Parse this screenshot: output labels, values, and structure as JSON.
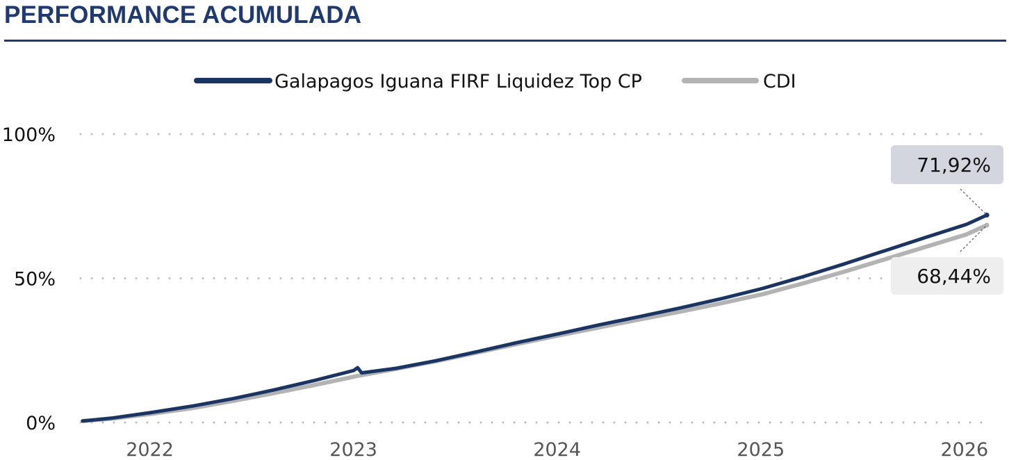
{
  "header": {
    "title": "PERFORMANCE ACUMULADA"
  },
  "colors": {
    "title": "#1f3a73",
    "fund": "#1b3563",
    "cdi": "#b3b3b3",
    "grid": "#bdbdbd",
    "callout_fund_bg": "#d3d6de",
    "callout_cdi_bg": "#eeeeee"
  },
  "chart_data": {
    "type": "line",
    "title": "",
    "xlabel": "",
    "ylabel": "",
    "legend_position": "top-center",
    "grid": "horizontal-dotted",
    "xlim": [
      2021.65,
      2026.12
    ],
    "ylim": [
      0,
      100
    ],
    "y_ticks": [
      {
        "value": 0,
        "label": "0%"
      },
      {
        "value": 50,
        "label": "50%"
      },
      {
        "value": 100,
        "label": "100%"
      }
    ],
    "x_ticks": [
      {
        "value": 2022,
        "label": "2022"
      },
      {
        "value": 2023,
        "label": "2023"
      },
      {
        "value": 2024,
        "label": "2024"
      },
      {
        "value": 2025,
        "label": "2025"
      },
      {
        "value": 2026,
        "label": "2026"
      }
    ],
    "series": [
      {
        "name": "Galapagos Iguana FIRF Liquidez Top CP",
        "color_key": "fund",
        "end_label": "71,92%",
        "points": [
          [
            2021.66,
            0.5
          ],
          [
            2021.8,
            1.5
          ],
          [
            2022.0,
            3.5
          ],
          [
            2022.2,
            5.7
          ],
          [
            2022.4,
            8.3
          ],
          [
            2022.6,
            11.3
          ],
          [
            2022.8,
            14.6
          ],
          [
            2022.99,
            18.0
          ],
          [
            2023.01,
            19.0
          ],
          [
            2023.03,
            17.2
          ],
          [
            2023.2,
            18.8
          ],
          [
            2023.4,
            21.5
          ],
          [
            2023.6,
            24.6
          ],
          [
            2023.8,
            27.8
          ],
          [
            2024.0,
            30.8
          ],
          [
            2024.2,
            33.9
          ],
          [
            2024.4,
            36.8
          ],
          [
            2024.6,
            39.8
          ],
          [
            2024.8,
            43.0
          ],
          [
            2025.0,
            46.5
          ],
          [
            2025.2,
            50.6
          ],
          [
            2025.4,
            55.0
          ],
          [
            2025.6,
            59.6
          ],
          [
            2025.8,
            64.2
          ],
          [
            2026.0,
            68.7
          ],
          [
            2026.1,
            71.92
          ]
        ]
      },
      {
        "name": "CDI",
        "color_key": "cdi",
        "end_label": "68,44%",
        "points": [
          [
            2021.66,
            0.5
          ],
          [
            2021.8,
            1.3
          ],
          [
            2022.0,
            3.0
          ],
          [
            2022.2,
            5.0
          ],
          [
            2022.4,
            7.5
          ],
          [
            2022.6,
            10.2
          ],
          [
            2022.8,
            13.0
          ],
          [
            2023.0,
            16.0
          ],
          [
            2023.2,
            18.6
          ],
          [
            2023.4,
            21.3
          ],
          [
            2023.6,
            24.3
          ],
          [
            2023.8,
            27.3
          ],
          [
            2024.0,
            30.2
          ],
          [
            2024.2,
            33.0
          ],
          [
            2024.4,
            35.8
          ],
          [
            2024.6,
            38.5
          ],
          [
            2024.8,
            41.4
          ],
          [
            2025.0,
            44.5
          ],
          [
            2025.2,
            48.3
          ],
          [
            2025.4,
            52.3
          ],
          [
            2025.6,
            56.6
          ],
          [
            2025.8,
            60.9
          ],
          [
            2026.0,
            65.2
          ],
          [
            2026.1,
            68.44
          ]
        ]
      }
    ]
  }
}
